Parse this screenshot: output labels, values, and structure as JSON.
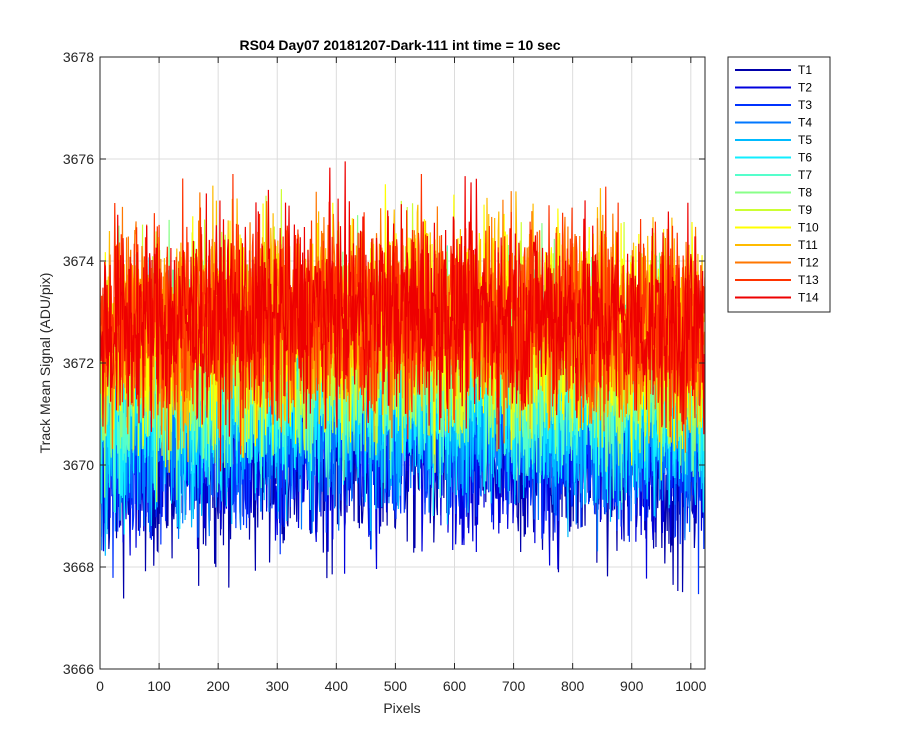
{
  "chart_data": {
    "type": "line",
    "title": "RS04 Day07 20181207-Dark-111 int time = 10 sec",
    "xlabel": "Pixels",
    "ylabel": "Track Mean Signal (ADU/pix)",
    "xlim": [
      0,
      1024
    ],
    "ylim": [
      3666,
      3678
    ],
    "xticks": [
      0,
      100,
      200,
      300,
      400,
      500,
      600,
      700,
      800,
      900,
      1000
    ],
    "yticks": [
      3666,
      3668,
      3670,
      3672,
      3674,
      3676,
      3678
    ],
    "grid": true,
    "legend_position": "outside-top-right",
    "noise_amplitude": 1.1,
    "series": [
      {
        "name": "T1",
        "color": "#0000aa",
        "mean": 3670.3
      },
      {
        "name": "T2",
        "color": "#0000dd",
        "mean": 3670.5
      },
      {
        "name": "T3",
        "color": "#0033ff",
        "mean": 3670.8
      },
      {
        "name": "T4",
        "color": "#0077ff",
        "mean": 3671.0
      },
      {
        "name": "T5",
        "color": "#00bbff",
        "mean": 3671.3
      },
      {
        "name": "T6",
        "color": "#11eeff",
        "mean": 3671.6
      },
      {
        "name": "T7",
        "color": "#55ffcc",
        "mean": 3671.9
      },
      {
        "name": "T8",
        "color": "#88ff88",
        "mean": 3672.2
      },
      {
        "name": "T9",
        "color": "#ccff33",
        "mean": 3672.5
      },
      {
        "name": "T10",
        "color": "#ffff00",
        "mean": 3672.8
      },
      {
        "name": "T11",
        "color": "#ffbb00",
        "mean": 3672.9
      },
      {
        "name": "T12",
        "color": "#ff7700",
        "mean": 3673.0
      },
      {
        "name": "T13",
        "color": "#ff3300",
        "mean": 3673.0
      },
      {
        "name": "T14",
        "color": "#ee0000",
        "mean": 3673.0
      }
    ]
  }
}
